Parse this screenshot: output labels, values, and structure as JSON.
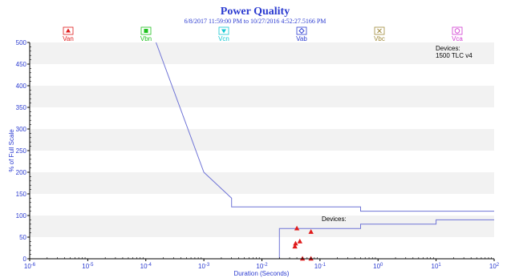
{
  "colors": {
    "accent": "#2a3ad0",
    "curve": "#6f74d6",
    "stripe": "#f2f2f2",
    "points": "#e01b1b"
  },
  "chart_data": {
    "type": "scatter",
    "title": "Power Quality",
    "subtitle": "6/8/2017 11:59:00 PM to 10/27/2016 4:52:27.5166 PM",
    "xlabel": "Duration (Seconds)",
    "ylabel": "% of Full Scale",
    "x_scale": "log",
    "xlim": [
      1e-06,
      100
    ],
    "ylim": [
      0,
      500
    ],
    "grid": "horizontal bands",
    "x_ticks": [
      {
        "base": "10",
        "exp": "-6",
        "value": 1e-06
      },
      {
        "base": "10",
        "exp": "-5",
        "value": 1e-05
      },
      {
        "base": "10",
        "exp": "-4",
        "value": 0.0001
      },
      {
        "base": "10",
        "exp": "-3",
        "value": 0.001
      },
      {
        "base": "10",
        "exp": "-2",
        "value": 0.01
      },
      {
        "base": "10",
        "exp": "-1",
        "value": 0.1
      },
      {
        "base": "10",
        "exp": "0",
        "value": 1
      },
      {
        "base": "10",
        "exp": "1",
        "value": 10
      },
      {
        "base": "10",
        "exp": "2",
        "value": 100
      }
    ],
    "y_ticks": [
      "0",
      "50",
      "100",
      "150",
      "200",
      "250",
      "300",
      "350",
      "400",
      "450",
      "500"
    ],
    "legend": [
      {
        "name": "Van",
        "symbol": "triangle-up",
        "color": "#e01b1b"
      },
      {
        "name": "Vbn",
        "symbol": "square",
        "color": "#1fc11f"
      },
      {
        "name": "Vcn",
        "symbol": "triangle-down",
        "color": "#14c8d2"
      },
      {
        "name": "Vab",
        "symbol": "diamond",
        "color": "#2a3ad0"
      },
      {
        "name": "Vbc",
        "symbol": "x",
        "color": "#a08a3a"
      },
      {
        "name": "Vca",
        "symbol": "circle",
        "color": "#d13bd1"
      }
    ],
    "legend_position": "top",
    "annotations": [
      {
        "lines": [
          "Devices:",
          "1500 TLC v4"
        ],
        "position": "top-right"
      },
      {
        "lines": [
          "Devices:"
        ],
        "position": "center-right"
      }
    ],
    "curves": [
      {
        "points": [
          [
            0.00015,
            500
          ],
          [
            0.001,
            200
          ],
          [
            0.003,
            140
          ],
          [
            0.003,
            120
          ],
          [
            0.5,
            120
          ],
          [
            0.5,
            110
          ],
          [
            100,
            110
          ]
        ]
      },
      {
        "points": [
          [
            0.016,
            0
          ],
          [
            0.02,
            0
          ],
          [
            0.02,
            70
          ],
          [
            0.5,
            70
          ],
          [
            0.5,
            80
          ],
          [
            10,
            80
          ],
          [
            10,
            90
          ],
          [
            100,
            90
          ]
        ]
      }
    ],
    "series": [
      {
        "name": "Van",
        "points": [
          [
            0.04,
            70
          ],
          [
            0.045,
            40
          ],
          [
            0.038,
            35
          ],
          [
            0.037,
            28
          ],
          [
            0.07,
            62
          ],
          [
            0.05,
            0
          ],
          [
            0.07,
            0
          ]
        ]
      }
    ]
  }
}
